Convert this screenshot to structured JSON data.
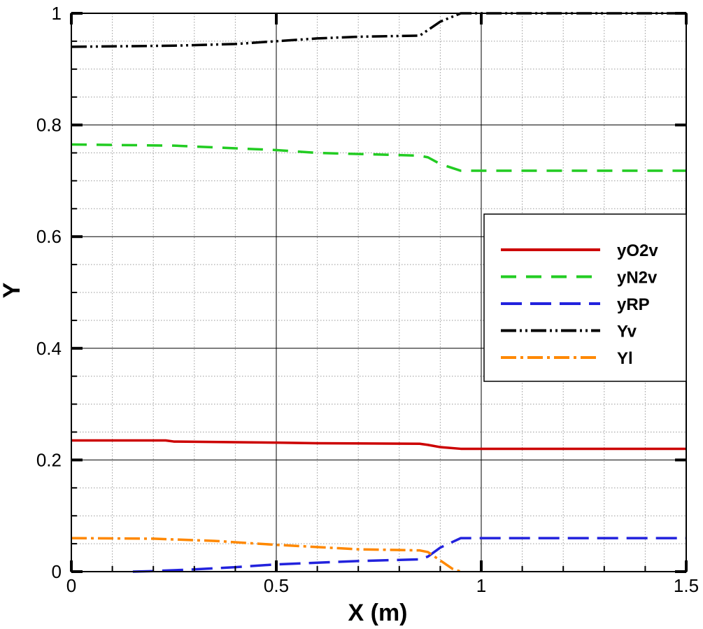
{
  "chart_data": {
    "type": "line",
    "title": "",
    "xlabel": "X (m)",
    "ylabel": "Y",
    "xlim": [
      0,
      1.5
    ],
    "ylim": [
      0,
      1
    ],
    "grid": true,
    "legend_position": "right",
    "xticks": [
      {
        "value": 0,
        "label": "0"
      },
      {
        "value": 0.5,
        "label": "0.5"
      },
      {
        "value": 1,
        "label": "1"
      },
      {
        "value": 1.5,
        "label": "1.5"
      }
    ],
    "yticks": [
      {
        "value": 0,
        "label": "0"
      },
      {
        "value": 0.2,
        "label": "0.2"
      },
      {
        "value": 0.4,
        "label": "0.4"
      },
      {
        "value": 0.6,
        "label": "0.6"
      },
      {
        "value": 0.8,
        "label": "0.8"
      },
      {
        "value": 1,
        "label": "1"
      }
    ],
    "series": [
      {
        "name": "yO2v",
        "color": "#cc0000",
        "style": "solid",
        "points": [
          [
            0,
            0.235
          ],
          [
            0.23,
            0.235
          ],
          [
            0.25,
            0.233
          ],
          [
            0.5,
            0.231
          ],
          [
            0.6,
            0.23
          ],
          [
            0.85,
            0.229
          ],
          [
            0.87,
            0.227
          ],
          [
            0.9,
            0.223
          ],
          [
            0.95,
            0.22
          ],
          [
            1.5,
            0.22
          ]
        ]
      },
      {
        "name": "yN2v",
        "color": "#22cc22",
        "style": "dashed",
        "points": [
          [
            0,
            0.765
          ],
          [
            0.25,
            0.763
          ],
          [
            0.5,
            0.755
          ],
          [
            0.6,
            0.75
          ],
          [
            0.85,
            0.745
          ],
          [
            0.87,
            0.742
          ],
          [
            0.9,
            0.73
          ],
          [
            0.95,
            0.718
          ],
          [
            1.5,
            0.718
          ]
        ]
      },
      {
        "name": "yRP",
        "color": "#2222dd",
        "style": "longdash",
        "points": [
          [
            0.15,
            0
          ],
          [
            0.2,
            0.001
          ],
          [
            0.3,
            0.004
          ],
          [
            0.4,
            0.008
          ],
          [
            0.5,
            0.013
          ],
          [
            0.6,
            0.016
          ],
          [
            0.7,
            0.019
          ],
          [
            0.85,
            0.022
          ],
          [
            0.87,
            0.027
          ],
          [
            0.9,
            0.043
          ],
          [
            0.95,
            0.06
          ],
          [
            1.5,
            0.06
          ]
        ]
      },
      {
        "name": "Yv",
        "color": "#000000",
        "style": "dashdotdot",
        "points": [
          [
            0,
            0.94
          ],
          [
            0.25,
            0.942
          ],
          [
            0.4,
            0.945
          ],
          [
            0.5,
            0.95
          ],
          [
            0.6,
            0.955
          ],
          [
            0.7,
            0.958
          ],
          [
            0.85,
            0.96
          ],
          [
            0.87,
            0.97
          ],
          [
            0.9,
            0.985
          ],
          [
            0.95,
            1.0
          ],
          [
            1.5,
            1.0
          ]
        ]
      },
      {
        "name": "Yl",
        "color": "#ff8800",
        "style": "dashdot",
        "points": [
          [
            0,
            0.06
          ],
          [
            0.2,
            0.059
          ],
          [
            0.35,
            0.055
          ],
          [
            0.5,
            0.048
          ],
          [
            0.6,
            0.044
          ],
          [
            0.7,
            0.04
          ],
          [
            0.85,
            0.038
          ],
          [
            0.87,
            0.035
          ],
          [
            0.9,
            0.02
          ],
          [
            0.93,
            0.005
          ],
          [
            0.95,
            0.0
          ]
        ]
      }
    ]
  }
}
